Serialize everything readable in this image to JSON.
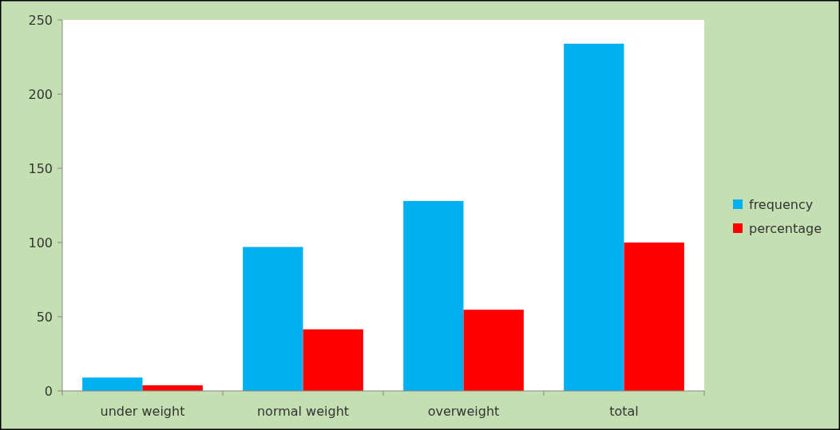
{
  "chart_data": {
    "type": "bar",
    "categories": [
      "under weight",
      "normal weight",
      "overweight",
      "total"
    ],
    "series": [
      {
        "name": "frequency",
        "color": "#00b0f0",
        "values": [
          9,
          97,
          128,
          234
        ]
      },
      {
        "name": "percentage",
        "color": "#ff0000",
        "values": [
          3.8,
          41.5,
          54.7,
          100
        ]
      }
    ],
    "ylim": [
      0,
      250
    ],
    "yticks": [
      0,
      50,
      100,
      150,
      200,
      250
    ],
    "grid": false,
    "legend": "right"
  }
}
